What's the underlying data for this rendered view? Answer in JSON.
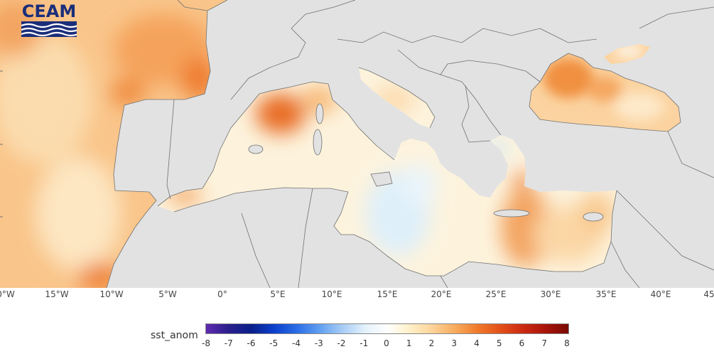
{
  "logo": {
    "text": "CEAM"
  },
  "colors": {
    "land": "#e2e2e2",
    "border": "#707070",
    "sea_near_zero": "#fdf6e4",
    "sea_warm": "#f8c383",
    "sea_hot": "#ec7b2c",
    "sea_cool": "#d9eefa"
  },
  "map": {
    "longitude_labels": [
      "0°W",
      "15°W",
      "10°W",
      "5°W",
      "0°",
      "5°E",
      "10°E",
      "15°E",
      "20°E",
      "25°E",
      "30°E",
      "35°E",
      "40°E",
      "45"
    ]
  },
  "legend": {
    "title": "sst_anom",
    "ticks": [
      "-8",
      "-7",
      "-6",
      "-5",
      "-4",
      "-3",
      "-2",
      "-1",
      "0",
      "1",
      "2",
      "3",
      "4",
      "5",
      "6",
      "7",
      "8"
    ],
    "gradient_colors": [
      "#5e2bb0",
      "#2a1f8c",
      "#0a1f8a",
      "#0b3fcc",
      "#2a6de6",
      "#5f9ef0",
      "#a6ccf6",
      "#e2f1fb",
      "#ffffff",
      "#fff0c8",
      "#fcd399",
      "#f8ab5e",
      "#f07a2b",
      "#e2501a",
      "#cc2a12",
      "#a81409",
      "#7a0a04"
    ]
  }
}
